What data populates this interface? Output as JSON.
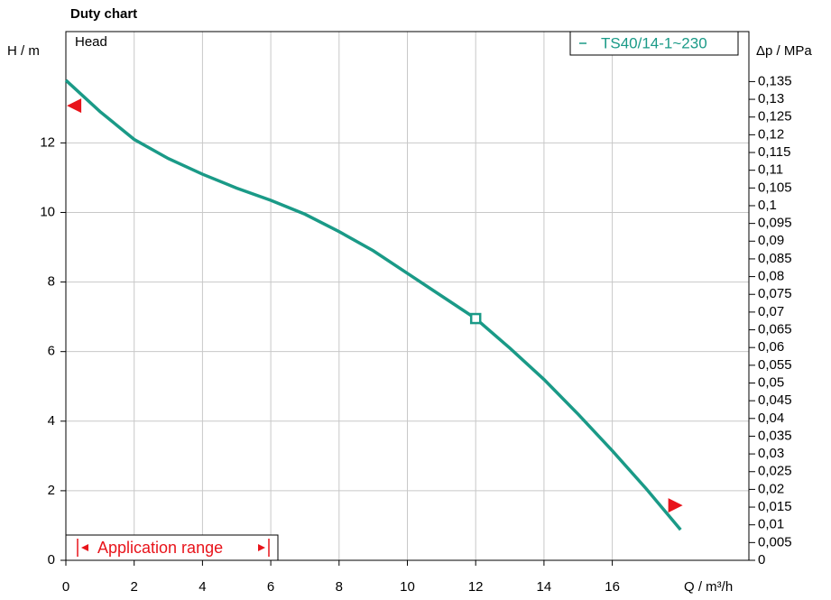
{
  "chart_data": {
    "type": "line",
    "title": "Duty chart",
    "y_label": "H / m",
    "y2_label": "Δp / MPa",
    "x_label": "Q / m³/h",
    "inner_label": "Head",
    "range_label": "Application range",
    "xlim": [
      0,
      20
    ],
    "xticks": [
      0,
      2,
      4,
      6,
      8,
      10,
      12,
      14,
      16
    ],
    "ylim": [
      0,
      15.2
    ],
    "yticks": [
      0,
      2,
      4,
      6,
      8,
      10,
      12
    ],
    "y2lim": [
      0,
      0.1491
    ],
    "y2ticks": [
      0,
      {
        "value": 0.005,
        "label": "0,005"
      },
      {
        "value": 0.01,
        "label": "0,01"
      },
      {
        "value": 0.015,
        "label": "0,015"
      },
      {
        "value": 0.02,
        "label": "0,02"
      },
      {
        "value": 0.025,
        "label": "0,025"
      },
      {
        "value": 0.03,
        "label": "0,03"
      },
      {
        "value": 0.035,
        "label": "0,035"
      },
      {
        "value": 0.04,
        "label": "0,04"
      },
      {
        "value": 0.045,
        "label": "0,045"
      },
      {
        "value": 0.05,
        "label": "0,05"
      },
      {
        "value": 0.055,
        "label": "0,055"
      },
      {
        "value": 0.06,
        "label": "0,06"
      },
      {
        "value": 0.065,
        "label": "0,065"
      },
      {
        "value": 0.07,
        "label": "0,07"
      },
      {
        "value": 0.075,
        "label": "0,075"
      },
      {
        "value": 0.08,
        "label": "0,08"
      },
      {
        "value": 0.085,
        "label": "0,085"
      },
      {
        "value": 0.09,
        "label": "0,09"
      },
      {
        "value": 0.095,
        "label": "0,095"
      },
      {
        "value": 0.1,
        "label": "0,1"
      },
      {
        "value": 0.105,
        "label": "0,105"
      },
      {
        "value": 0.11,
        "label": "0,11"
      },
      {
        "value": 0.115,
        "label": "0,115"
      },
      {
        "value": 0.12,
        "label": "0,12"
      },
      {
        "value": 0.125,
        "label": "0,125"
      },
      {
        "value": 0.13,
        "label": "0,13"
      },
      {
        "value": 0.135,
        "label": "0,135"
      }
    ],
    "grid": true,
    "series": [
      {
        "name": "TS40/14-1~230",
        "color": "#1a9a87",
        "x": [
          0,
          1,
          2,
          3,
          4,
          5,
          6,
          7,
          8,
          9,
          10,
          11,
          12,
          13,
          14,
          15,
          16,
          17,
          18
        ],
        "values": [
          13.8,
          12.9,
          12.1,
          11.55,
          11.1,
          10.7,
          10.35,
          9.95,
          9.45,
          8.9,
          8.25,
          7.6,
          6.95,
          6.1,
          5.2,
          4.2,
          3.15,
          2.05,
          0.88
        ]
      }
    ],
    "operating_point": {
      "x": 12,
      "y": 6.95
    },
    "range_markers": [
      {
        "x": 0.24,
        "y": 13.07,
        "color": "#e8141b"
      },
      {
        "x": 17.85,
        "y": 1.58,
        "color": "#e8141b"
      }
    ]
  }
}
